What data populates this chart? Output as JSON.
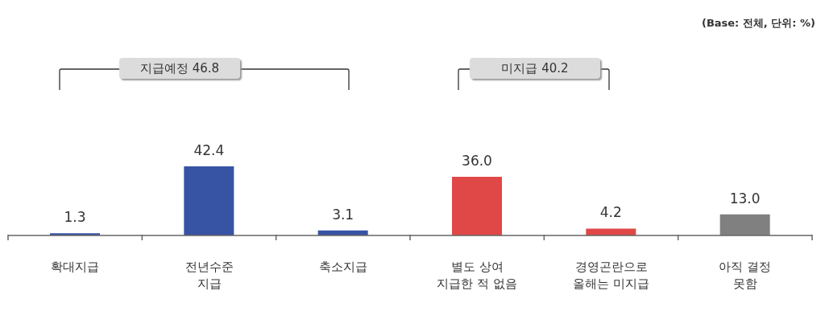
{
  "chart_data": {
    "type": "bar",
    "categories": [
      "확대지급",
      "전년수준\n지급",
      "축소지급",
      "별도 상여\n지급한 적 없음",
      "경영곤란으로\n올해는 미지급",
      "아직 결정\n못함"
    ],
    "values": [
      1.3,
      42.4,
      3.1,
      36.0,
      4.2,
      13.0
    ],
    "colors": [
      "#3753a4",
      "#3753a4",
      "#3753a4",
      "#e04848",
      "#e04848",
      "#808080"
    ],
    "value_labels": [
      "1.3",
      "42.4",
      "3.1",
      "36.0",
      "4.2",
      "13.0"
    ],
    "tick_labels": "x",
    "annotations": [
      "(Base: 전체, 단위: %)",
      "지급예정 46.8",
      "미지급 40.2"
    ]
  }
}
